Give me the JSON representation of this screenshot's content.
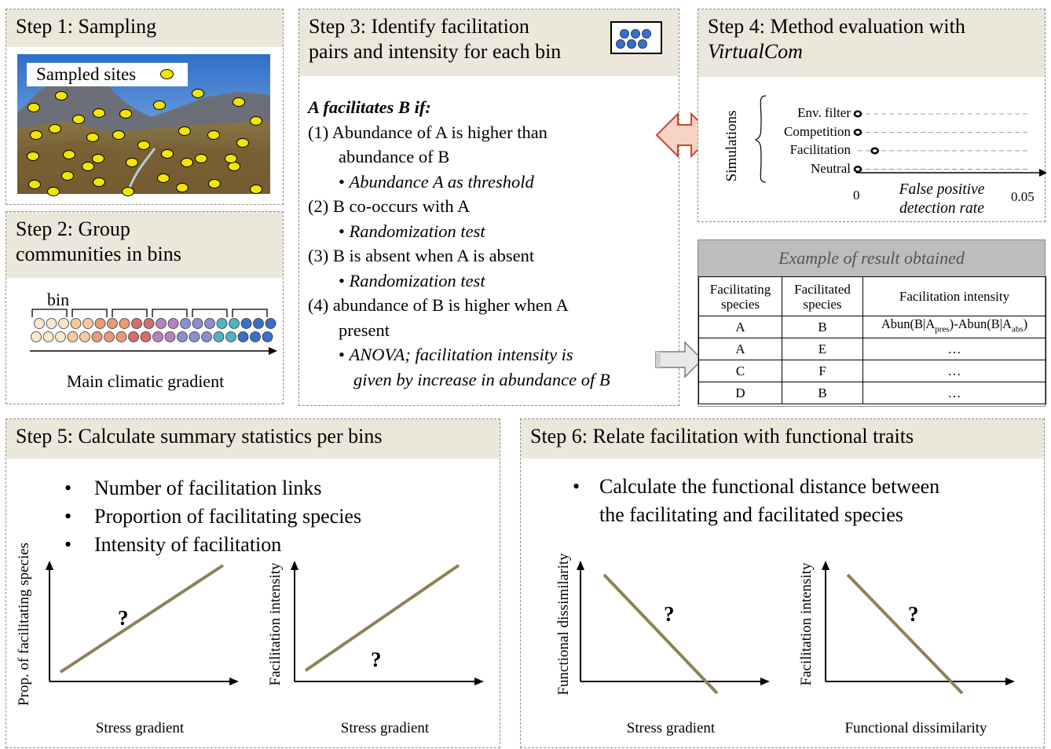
{
  "step1": {
    "title": "Step 1: Sampling",
    "legend": "Sampled sites"
  },
  "step2": {
    "title_line1": "Step 2: Group",
    "title_line2": "communities in bins",
    "bin_label": "bin",
    "axis_label": "Main climatic gradient",
    "bin_colors": [
      "#f7c8a0",
      "#e79a7a",
      "#c38bc4",
      "#58b5c4",
      "#3a6fc9"
    ]
  },
  "step3": {
    "title_line1": "Step 3: Identify facilitation",
    "title_line2": "pairs and intensity for each bin",
    "heading": "A facilitates B if:",
    "c1a": "(1) Abundance of A is higher than",
    "c1b": "abundance of B",
    "c1s": "Abundance A as threshold",
    "c2a": "(2) B co-occurs with A",
    "c2s": "Randomization test",
    "c3a": "(3) B is absent when A is absent",
    "c3s": "Randomization test",
    "c4a": "(4) abundance of B is higher when A",
    "c4b": "present",
    "c4s1": "ANOVA; facilitation intensity is",
    "c4s2": "given by increase in abundance of B"
  },
  "step4": {
    "title_line1": "Step 4: Method evaluation with",
    "title_line2": "VirtualCom",
    "yaxis": "Simulations",
    "rows": [
      {
        "label": "Env. filter",
        "value": 0
      },
      {
        "label": "Competition",
        "value": 0
      },
      {
        "label": "Facilitation",
        "value": 0.005
      },
      {
        "label": "Neutral",
        "value": 0
      }
    ],
    "x_min": "0",
    "x_max": "0.05",
    "xlabel1": "False positive",
    "xlabel2": "detection rate"
  },
  "result": {
    "title": "Example of result obtained",
    "col1a": "Facilitating",
    "col1b": "species",
    "col2a": "Facilitated",
    "col2b": "species",
    "col3": "Facilitation intensity",
    "rows": [
      [
        "A",
        "B"
      ],
      [
        "A",
        "E"
      ],
      [
        "C",
        "F"
      ],
      [
        "D",
        "B"
      ]
    ],
    "formula_a": "Abun(B|A",
    "formula_sub1": "pres",
    "formula_b": ")-Abun(B|A",
    "formula_sub2": "abs",
    "formula_c": ")",
    "ellipsis": "…"
  },
  "step5": {
    "title": "Step 5: Calculate summary statistics per bins",
    "bullets": [
      "Number of facilitation links",
      "Proportion of facilitating species",
      "Intensity of facilitation"
    ],
    "plot1": {
      "ylabel": "Prop. of facilitating species",
      "xlabel": "Stress gradient",
      "mark": "?"
    },
    "plot2": {
      "ylabel": "Facilitation intensity",
      "xlabel": "Stress gradient",
      "mark": "?"
    }
  },
  "step6": {
    "title": "Step 6: Relate facilitation with functional traits",
    "bullet_line1": "Calculate the functional distance between",
    "bullet_line2": "the facilitating and facilitated species",
    "plot1": {
      "ylabel": "Functional dissimilarity",
      "xlabel": "Stress gradient",
      "mark": "?"
    },
    "plot2": {
      "ylabel": "Facilitation intensity",
      "xlabel": "Functional dissimilarity",
      "mark": "?"
    }
  },
  "colors": {
    "header_bg": "#ebe7da",
    "trend_line": "#8e8256",
    "site_dot": "#f2e600",
    "arrow_fill": "#f7d3c3",
    "arrow_stroke": "#c7472e"
  }
}
